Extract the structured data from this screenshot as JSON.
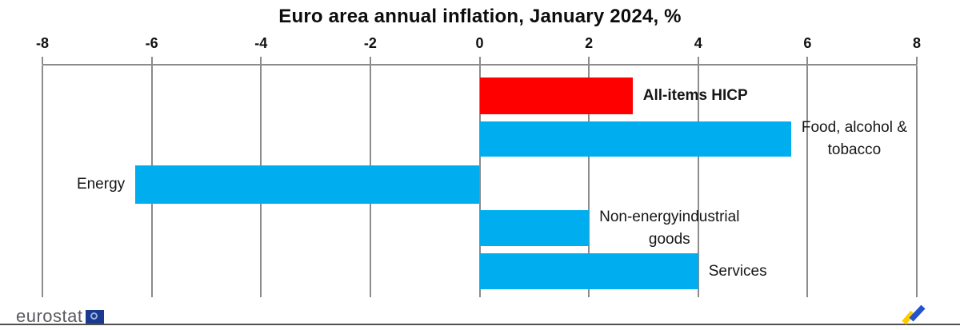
{
  "chart_data": {
    "type": "bar",
    "orientation": "horizontal",
    "title": "Euro area annual inflation, January 2024, %",
    "xlabel": "",
    "ylabel": "",
    "xlim": [
      -8,
      8
    ],
    "x_ticks": [
      -8,
      -6,
      -4,
      -2,
      0,
      2,
      4,
      6,
      8
    ],
    "x_tick_labels": [
      "-8",
      "-6",
      "-4",
      "-2",
      "0",
      "2",
      "4",
      "6",
      "8"
    ],
    "grid": true,
    "legend": false,
    "categories": [
      "All-items HICP",
      "Food, alcohol & tobacco",
      "Energy",
      "Non-energy industrial goods",
      "Services"
    ],
    "values": [
      2.8,
      5.7,
      -6.3,
      2.0,
      4.0
    ],
    "rows": [
      {
        "name": "all-items-hicp",
        "label_lines": [
          "All-items HICP"
        ],
        "value": 2.8,
        "color": "#ff0000",
        "bold": true,
        "label_side": "right"
      },
      {
        "name": "food-alcohol-tobacco",
        "label_lines": [
          "Food, alcohol &",
          "tobacco"
        ],
        "value": 5.7,
        "color": "#00aeef",
        "bold": false,
        "label_side": "right"
      },
      {
        "name": "energy",
        "label_lines": [
          "Energy"
        ],
        "value": -6.3,
        "color": "#00aeef",
        "bold": false,
        "label_side": "left"
      },
      {
        "name": "non-energy-industrial-goods",
        "label_lines": [
          "Non-energyindustrial",
          "goods"
        ],
        "value": 2.0,
        "color": "#00aeef",
        "bold": false,
        "label_side": "right"
      },
      {
        "name": "services",
        "label_lines": [
          "Services"
        ],
        "value": 4.0,
        "color": "#00aeef",
        "bold": false,
        "label_side": "right"
      }
    ],
    "colors": {
      "highlight_bar": "#ff0000",
      "default_bar": "#00aeef",
      "gridline": "#8c8c8c",
      "footer_rule": "#4f4f4f",
      "brand_gray": "#5a5a60",
      "eu_blue": "#1b3a8f",
      "logo_yellow": "#ffcc00",
      "logo_blue": "#2353cc"
    }
  },
  "footer": {
    "brand": "eurostat"
  }
}
